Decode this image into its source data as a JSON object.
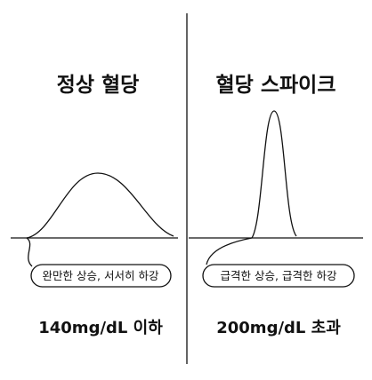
{
  "panels": [
    {
      "title": "정상 혈당",
      "caption": "완만한 상승, 서서히 하강",
      "threshold": "140mg/dL 이하"
    },
    {
      "title": "혈당 스파이크",
      "caption": "급격한 상승, 급격한 하강",
      "threshold": "200mg/dL 초과"
    }
  ]
}
